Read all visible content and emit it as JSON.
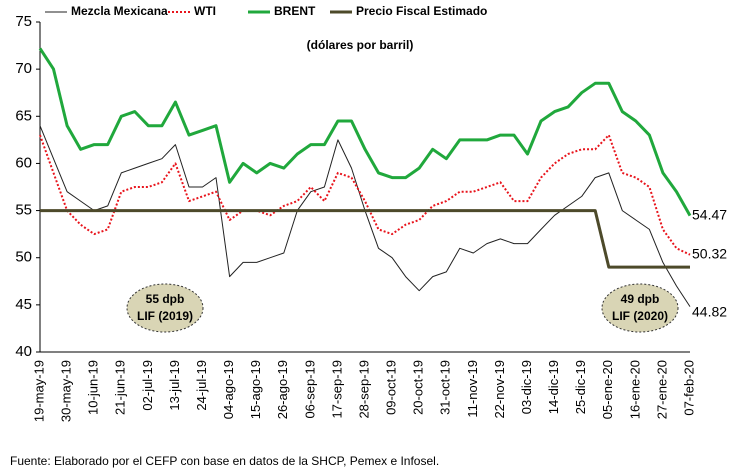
{
  "chart_data": {
    "type": "line",
    "subtitle": "(dólares por barril)",
    "source": "Fuente: Elaborado por el CEFP con base en datos de la SHCP, Pemex e Infosel.",
    "legend": "top",
    "grid": false,
    "ylim": [
      40,
      75
    ],
    "yticks": [
      40,
      45,
      50,
      55,
      60,
      65,
      70,
      75
    ],
    "categories": [
      "19-may-19",
      null,
      "30-may-19",
      null,
      "10-jun-19",
      null,
      "21-jun-19",
      null,
      "02-jul-19",
      null,
      "13-jul-19",
      null,
      "24-jul-19",
      null,
      "04-ago-19",
      null,
      "15-ago-19",
      null,
      "26-ago-19",
      null,
      "06-sep-19",
      null,
      "17-sep-19",
      null,
      "28-sep-19",
      null,
      "09-oct-19",
      null,
      "20-oct-19",
      null,
      "31-oct-19",
      null,
      "11-nov-19",
      null,
      "22-nov-19",
      null,
      "03-dic-19",
      null,
      "14-dic-19",
      null,
      "25-dic-19",
      null,
      "05-ene-20",
      null,
      "16-ene-20",
      null,
      "27-ene-20",
      null,
      "07-feb-20"
    ],
    "series": [
      {
        "name": "Mezcla Mexicana",
        "color": "#222222",
        "values": [
          64,
          60.5,
          57,
          56,
          55,
          55.5,
          59,
          59.5,
          60,
          60.5,
          62,
          57.5,
          57.5,
          58.5,
          48,
          49.5,
          49.5,
          50,
          50.5,
          55,
          57,
          57.5,
          62.5,
          59.5,
          55,
          51,
          50,
          48,
          46.5,
          48,
          48.5,
          51,
          50.5,
          51.5,
          52,
          51.5,
          51.5,
          53,
          54.5,
          55.5,
          56.5,
          58.5,
          59,
          55,
          54,
          53,
          49.5,
          47,
          44.82
        ]
      },
      {
        "name": "WTI",
        "color": "#e8141c",
        "line_style": "dotted",
        "values": [
          63,
          59,
          55,
          53.5,
          52.5,
          53,
          57,
          57.5,
          57.5,
          58,
          60,
          56,
          56.5,
          57,
          54,
          55,
          55,
          54.5,
          55.5,
          56,
          57.5,
          56,
          59,
          58.5,
          56,
          53,
          52.5,
          53.5,
          54,
          55.5,
          56,
          57,
          57,
          57.5,
          58,
          56,
          56,
          58.5,
          60,
          61,
          61.5,
          61.5,
          63,
          59,
          58.5,
          57.5,
          53,
          51,
          50.32
        ]
      },
      {
        "name": "BRENT",
        "color": "#20a83c",
        "values": [
          72.2,
          70,
          64,
          61.5,
          62,
          62,
          65,
          65.5,
          64,
          64,
          66.5,
          63,
          63.5,
          64,
          58,
          60,
          59,
          60,
          59.5,
          61,
          62,
          62,
          64.5,
          64.5,
          61.5,
          59,
          58.5,
          58.5,
          59.5,
          61.5,
          60.5,
          62.5,
          62.5,
          62.5,
          63,
          63,
          61,
          64.5,
          65.5,
          66,
          67.5,
          68.5,
          68.5,
          65.5,
          64.5,
          63,
          59,
          57,
          54.47
        ]
      },
      {
        "name": "Precio Fiscal Estimado",
        "color": "#4d4a2a",
        "values": [
          55,
          55,
          55,
          55,
          55,
          55,
          55,
          55,
          55,
          55,
          55,
          55,
          55,
          55,
          55,
          55,
          55,
          55,
          55,
          55,
          55,
          55,
          55,
          55,
          55,
          55,
          55,
          55,
          55,
          55,
          55,
          55,
          55,
          55,
          55,
          55,
          55,
          55,
          55,
          55,
          55,
          55,
          49,
          49,
          49,
          49,
          49,
          49,
          49
        ]
      }
    ],
    "annotations": [
      {
        "lines": [
          "55 dpb",
          "LIF (2019)"
        ]
      },
      {
        "lines": [
          "49 dpb",
          "LIF (2020)"
        ]
      }
    ]
  }
}
